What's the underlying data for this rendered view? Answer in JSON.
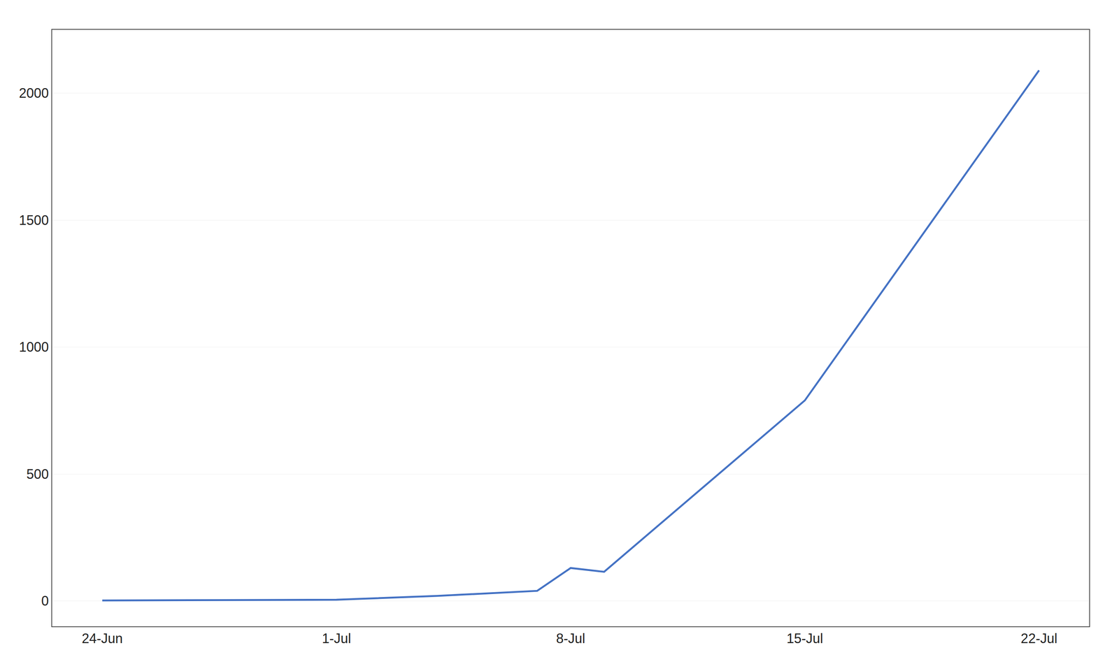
{
  "chart_data": {
    "type": "line",
    "x": [
      0,
      7,
      10,
      13,
      14,
      15,
      21,
      28
    ],
    "values": [
      2,
      5,
      20,
      40,
      130,
      115,
      790,
      2090
    ],
    "color": "#4472C4",
    "xlim": [
      -1.5,
      29.5
    ],
    "xticks": [
      {
        "value": 0,
        "label": "24-Jun"
      },
      {
        "value": 7,
        "label": "1-Jul"
      },
      {
        "value": 14,
        "label": "8-Jul"
      },
      {
        "value": 21,
        "label": "15-Jul"
      },
      {
        "value": 28,
        "label": "22-Jul"
      }
    ],
    "ylim": [
      -100,
      2250
    ],
    "yticks": [
      0,
      500,
      1000,
      1500,
      2000
    ],
    "grid": "y"
  }
}
